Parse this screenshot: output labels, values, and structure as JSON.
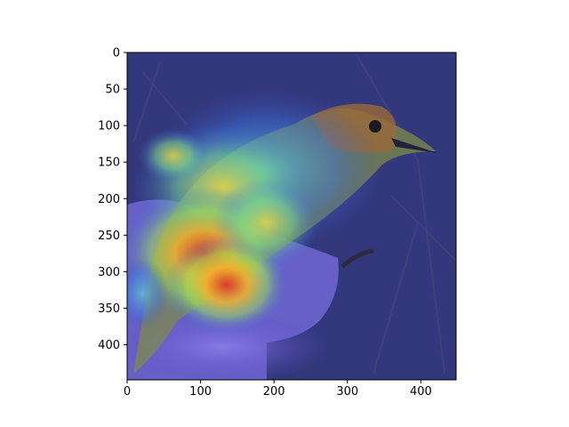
{
  "chart_data": {
    "type": "heatmap",
    "title": "",
    "xlabel": "",
    "ylabel": "",
    "image_description_note": "",
    "xlim": [
      0,
      448
    ],
    "ylim": [
      448,
      0
    ],
    "x_ticks": [
      0,
      100,
      200,
      300,
      400
    ],
    "y_ticks": [
      0,
      50,
      100,
      150,
      200,
      250,
      300,
      350,
      400
    ],
    "grid": false,
    "colormap": "jet",
    "overlay": "saliency heatmap over photo of a warbler perched on a hand",
    "hotspots": [
      {
        "x": 110,
        "y": 300,
        "intensity": 1.0
      },
      {
        "x": 150,
        "y": 260,
        "intensity": 0.85
      },
      {
        "x": 230,
        "y": 200,
        "intensity": 0.55
      },
      {
        "x": 300,
        "y": 130,
        "intensity": 0.45
      },
      {
        "x": 60,
        "y": 180,
        "intensity": 0.5
      }
    ]
  }
}
